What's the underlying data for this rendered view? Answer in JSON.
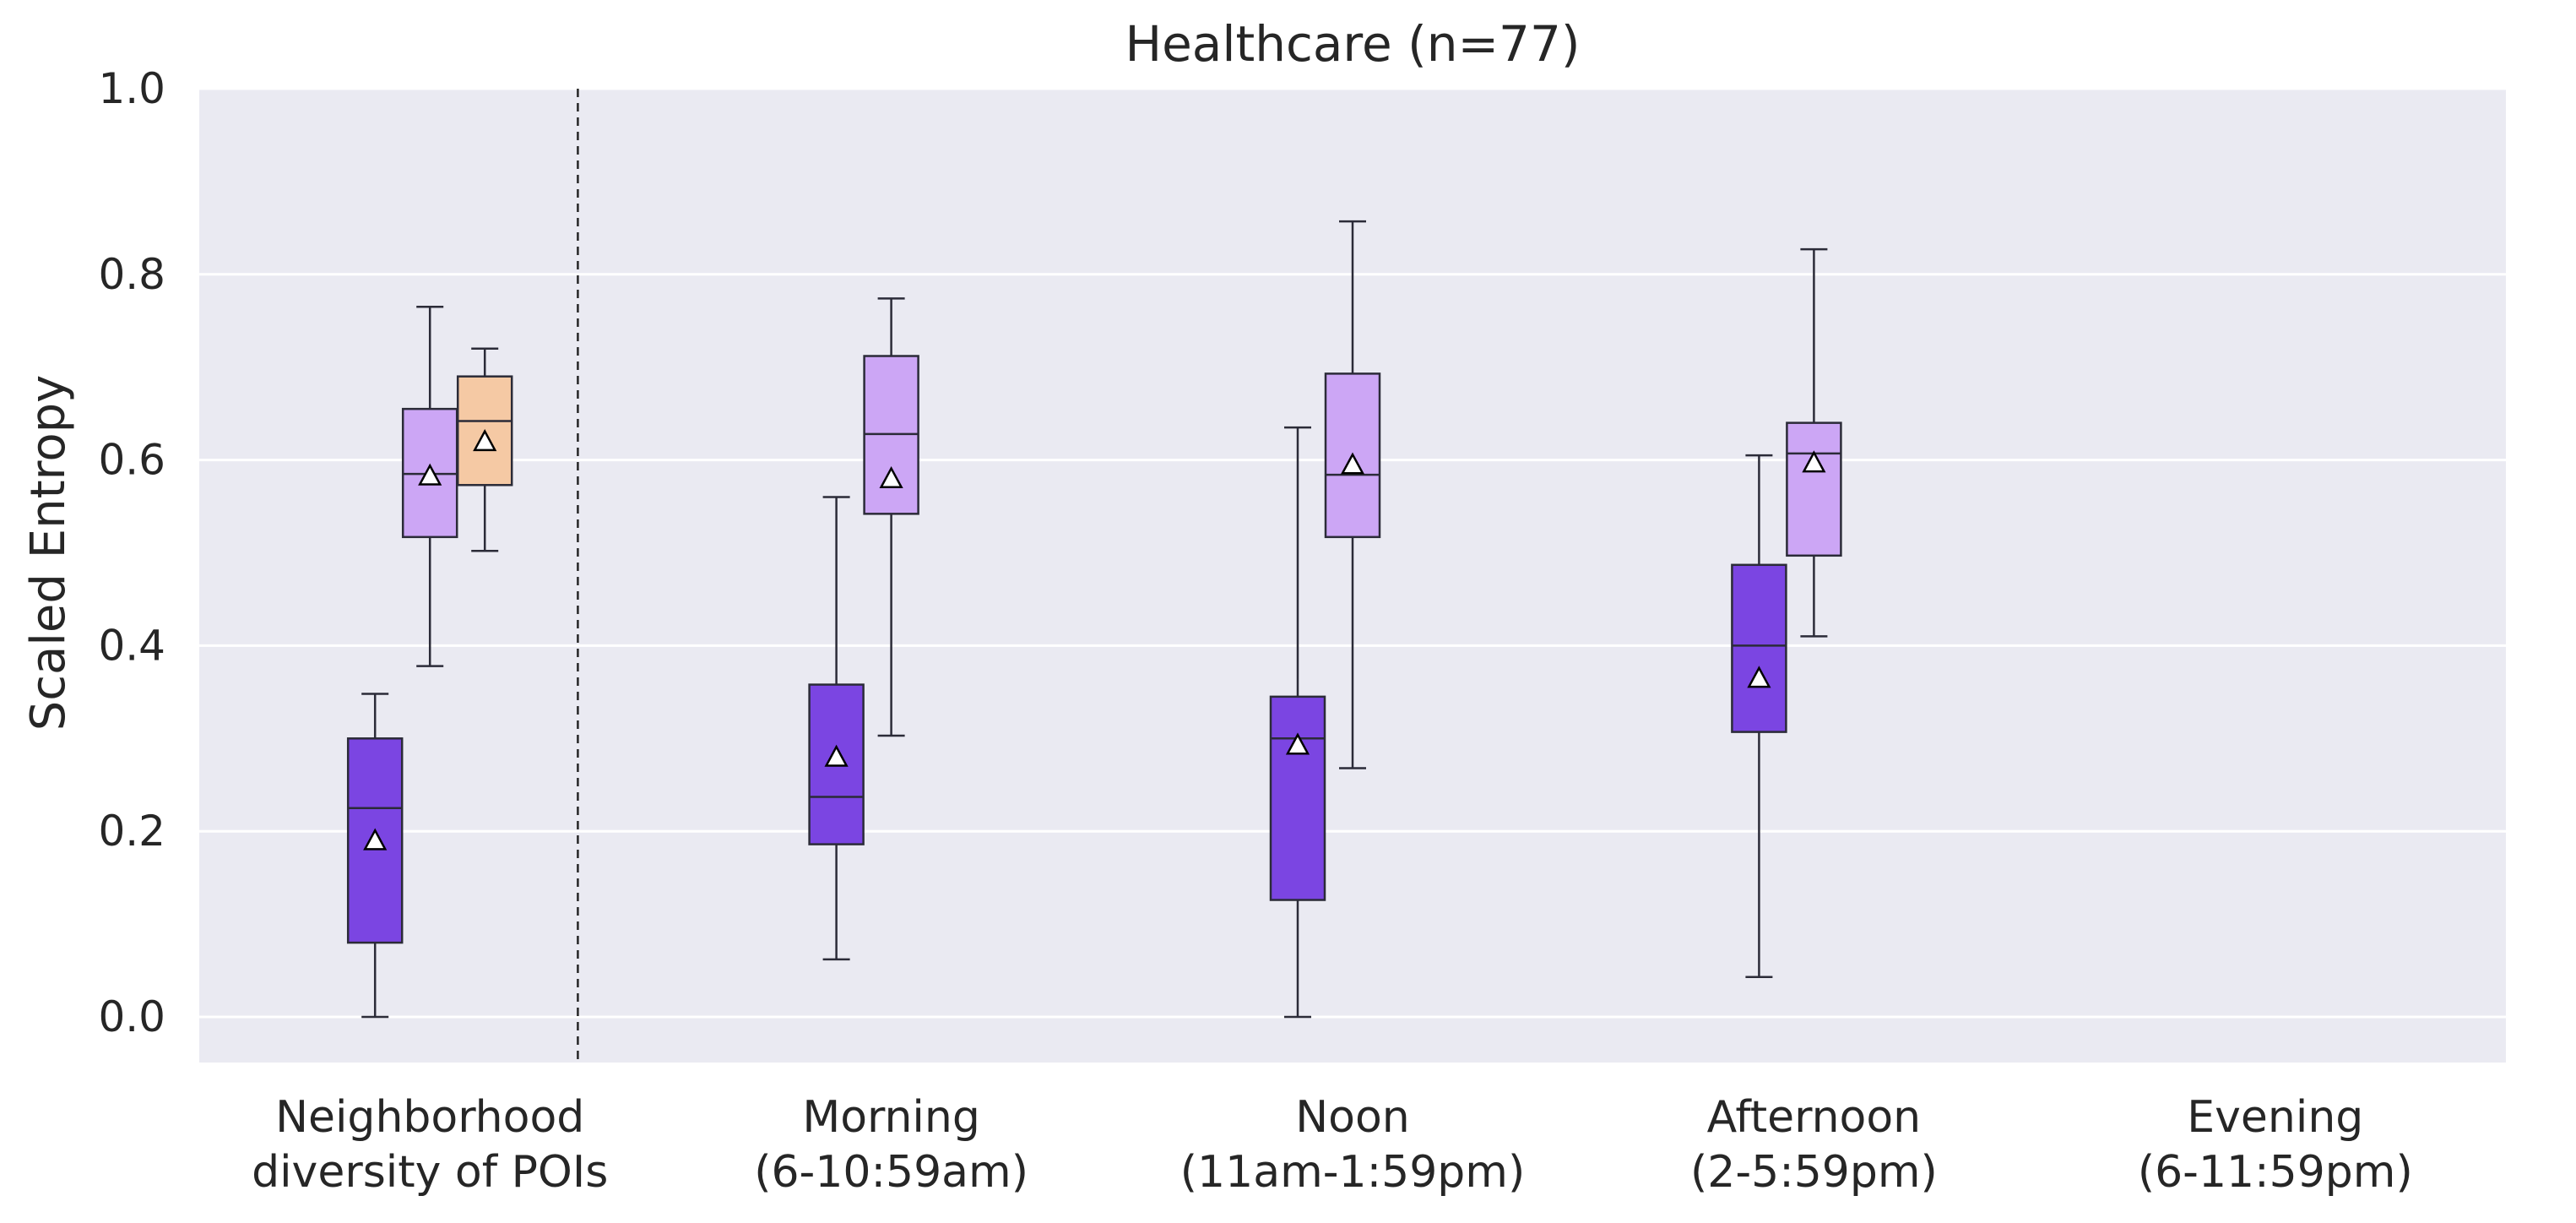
{
  "chart_data": {
    "type": "box",
    "title": "Healthcare (n=77)",
    "xlabel": "",
    "ylabel": "Scaled Entropy",
    "ylim": [
      -0.05,
      1.0
    ],
    "yticks": [
      "0.0",
      "0.2",
      "0.4",
      "0.6",
      "0.8",
      "1.0"
    ],
    "grid": true,
    "categories": [
      {
        "line1": "Neighborhood",
        "line2": "diversity of POIs"
      },
      {
        "line1": "Morning",
        "line2": "(6-10:59am)"
      },
      {
        "line1": "Noon",
        "line2": "(11am-1:59pm)"
      },
      {
        "line1": "Afternoon",
        "line2": "(2-5:59pm)"
      },
      {
        "line1": "Evening",
        "line2": "(6-11:59pm)"
      }
    ],
    "separator_after_category": 0,
    "series_colors": [
      "#7b45e2",
      "#cca6f5",
      "#f5c9a4"
    ],
    "boxes": [
      {
        "category": 0,
        "series": 0,
        "whislo": 0.0,
        "q1": 0.08,
        "med": 0.225,
        "q3": 0.3,
        "whishi": 0.348,
        "mean": 0.19
      },
      {
        "category": 0,
        "series": 1,
        "whislo": 0.378,
        "q1": 0.517,
        "med": 0.585,
        "q3": 0.655,
        "whishi": 0.765,
        "mean": 0.583
      },
      {
        "category": 0,
        "series": 2,
        "whislo": 0.502,
        "q1": 0.573,
        "med": 0.642,
        "q3": 0.69,
        "whishi": 0.72,
        "mean": 0.62
      },
      {
        "category": 1,
        "series": 0,
        "whislo": 0.062,
        "q1": 0.186,
        "med": 0.237,
        "q3": 0.358,
        "whishi": 0.56,
        "mean": 0.28
      },
      {
        "category": 1,
        "series": 1,
        "whislo": 0.303,
        "q1": 0.542,
        "med": 0.628,
        "q3": 0.712,
        "whishi": 0.774,
        "mean": 0.58
      },
      {
        "category": 2,
        "series": 0,
        "whislo": 0.0,
        "q1": 0.126,
        "med": 0.3,
        "q3": 0.345,
        "whishi": 0.635,
        "mean": 0.293
      },
      {
        "category": 2,
        "series": 1,
        "whislo": 0.268,
        "q1": 0.517,
        "med": 0.584,
        "q3": 0.693,
        "whishi": 0.857,
        "mean": 0.595
      },
      {
        "category": 3,
        "series": 0,
        "whislo": 0.043,
        "q1": 0.307,
        "med": 0.4,
        "q3": 0.487,
        "whishi": 0.605,
        "mean": 0.365
      },
      {
        "category": 3,
        "series": 1,
        "whislo": 0.41,
        "q1": 0.497,
        "med": 0.607,
        "q3": 0.64,
        "whishi": 0.827,
        "mean": 0.597
      }
    ]
  }
}
